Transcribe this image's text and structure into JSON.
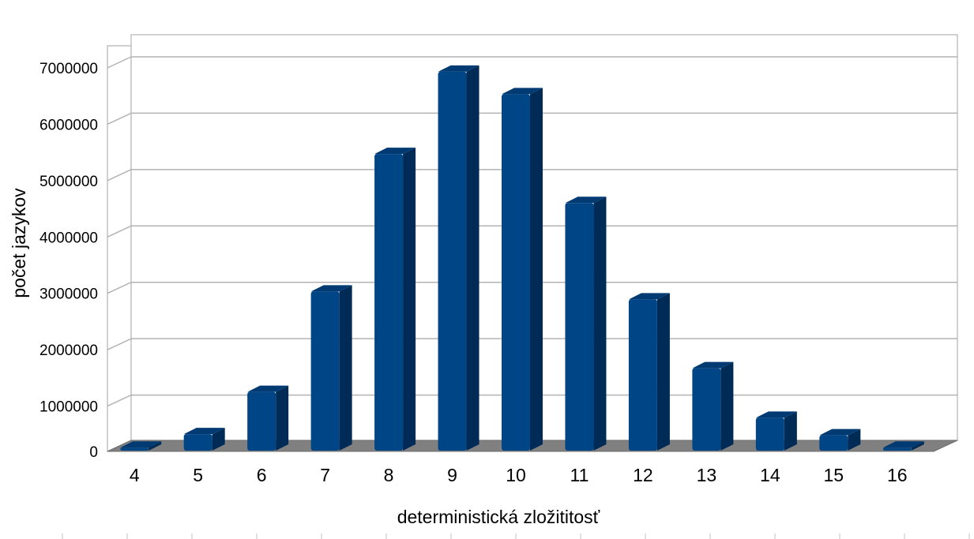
{
  "chart_data": {
    "type": "bar",
    "style": "3d-column",
    "bar_color": "#004586",
    "categories": [
      "4",
      "5",
      "6",
      "7",
      "8",
      "9",
      "10",
      "11",
      "12",
      "13",
      "14",
      "15",
      "16"
    ],
    "values": [
      10000,
      250000,
      1000000,
      2780000,
      5220000,
      6680000,
      6280000,
      4350000,
      2640000,
      1420000,
      540000,
      230000,
      10000
    ],
    "xlabel": "deterministická zložititosť",
    "ylabel": "počet jazykov",
    "ylim": [
      0,
      7000000
    ],
    "yticks": [
      0,
      1000000,
      2000000,
      3000000,
      4000000,
      5000000,
      6000000,
      7000000
    ],
    "ytick_labels": [
      "0",
      "1000000",
      "2000000",
      "3000000",
      "4000000",
      "5000000",
      "6000000",
      "7000000"
    ],
    "grid": true,
    "legend": "none"
  }
}
